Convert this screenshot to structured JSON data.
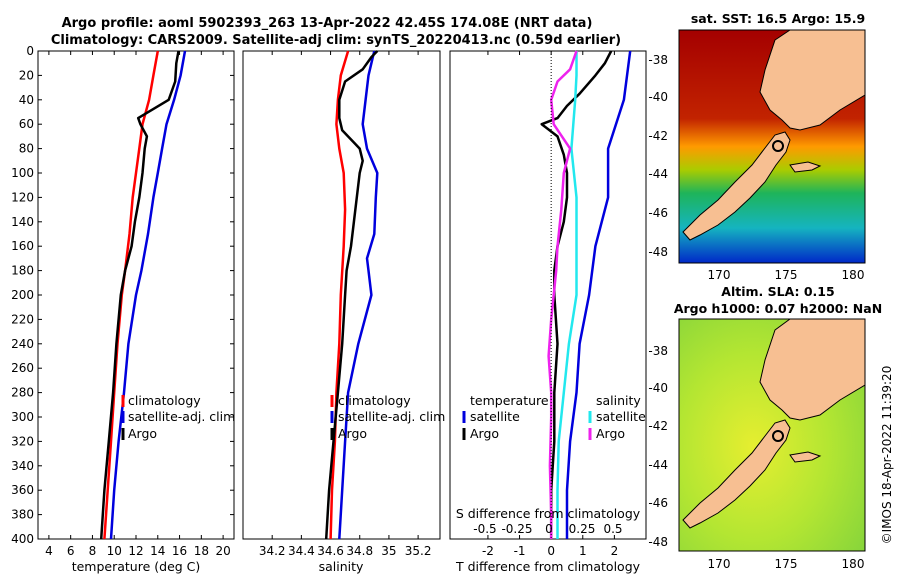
{
  "figure": {
    "title_line1": "Argo profile: aoml 5902393_263 13-Apr-2022 42.45S 174.08E (NRT data)",
    "title_line2": "Climatology: CARS2009. Satellite-adj clim: synTS_20220413.nc (0.59d earlier)",
    "credit": "©IMOS 18-Apr-2022 11:39:20"
  },
  "colors": {
    "climatology": "#ff0000",
    "satellite": "#0000dd",
    "argo": "#000000",
    "satellite_sal": "#22e8ee",
    "argo_sal": "#ee22ee"
  },
  "chart_data": [
    {
      "type": "line",
      "name": "temperature-profile",
      "xlabel": "temperature (deg C)",
      "xlim": [
        3,
        21
      ],
      "ylim": [
        0,
        400
      ],
      "xticks": [
        4,
        6,
        8,
        10,
        12,
        14,
        16,
        18,
        20
      ],
      "yticks": [
        0,
        20,
        40,
        60,
        80,
        100,
        120,
        140,
        160,
        180,
        200,
        220,
        240,
        260,
        280,
        300,
        320,
        340,
        360,
        380,
        400
      ],
      "legend": [
        "climatology",
        "satellite-adj. clim",
        "Argo"
      ],
      "series": [
        {
          "name": "climatology",
          "depth": [
            0,
            20,
            40,
            60,
            80,
            100,
            120,
            150,
            180,
            200,
            240,
            280,
            320,
            360,
            400
          ],
          "values": [
            14.0,
            13.6,
            13.2,
            12.6,
            12.3,
            12.0,
            11.7,
            11.4,
            11.0,
            10.7,
            10.3,
            10.0,
            9.7,
            9.4,
            9.1
          ]
        },
        {
          "name": "satellite-adj. clim",
          "depth": [
            0,
            20,
            40,
            60,
            80,
            100,
            120,
            150,
            180,
            200,
            240,
            280,
            320,
            360,
            400
          ],
          "values": [
            16.5,
            16.1,
            15.5,
            14.8,
            14.4,
            14.0,
            13.6,
            13.1,
            12.5,
            12.0,
            11.3,
            10.9,
            10.4,
            10.0,
            9.7
          ]
        },
        {
          "name": "Argo",
          "depth": [
            0,
            10,
            25,
            40,
            55,
            60,
            70,
            80,
            100,
            120,
            140,
            160,
            180,
            200,
            240,
            280,
            320,
            360,
            400
          ],
          "values": [
            15.9,
            15.7,
            15.6,
            15.0,
            12.2,
            12.4,
            13.0,
            12.8,
            12.6,
            12.3,
            11.9,
            11.6,
            11.0,
            10.6,
            10.2,
            9.9,
            9.5,
            9.1,
            8.8
          ]
        }
      ]
    },
    {
      "type": "line",
      "name": "salinity-profile",
      "xlabel": "salinity",
      "xlim": [
        34.0,
        35.35
      ],
      "ylim": [
        0,
        400
      ],
      "xticks": [
        34.2,
        34.4,
        34.6,
        34.8,
        35,
        35.2
      ],
      "xtick_labels": [
        "34.2",
        "34.4",
        "34.6",
        "34.8",
        "35",
        "35.2"
      ],
      "legend": [
        "climatology",
        "satellite-adj. clim",
        "Argo"
      ],
      "series": [
        {
          "name": "climatology",
          "depth": [
            0,
            20,
            40,
            60,
            80,
            100,
            130,
            160,
            200,
            240,
            280,
            320,
            360,
            400
          ],
          "values": [
            34.72,
            34.67,
            34.65,
            34.64,
            34.66,
            34.69,
            34.7,
            34.69,
            34.67,
            34.66,
            34.64,
            34.63,
            34.61,
            34.6
          ]
        },
        {
          "name": "satellite-adj. clim",
          "depth": [
            0,
            10,
            20,
            40,
            60,
            80,
            100,
            120,
            150,
            170,
            180,
            200,
            240,
            280,
            320,
            360,
            400
          ],
          "values": [
            34.9,
            34.88,
            34.86,
            34.84,
            34.82,
            34.85,
            34.92,
            34.91,
            34.9,
            34.85,
            34.86,
            34.88,
            34.79,
            34.72,
            34.7,
            34.68,
            34.66
          ]
        },
        {
          "name": "Argo",
          "depth": [
            0,
            5,
            15,
            25,
            40,
            55,
            65,
            75,
            80,
            90,
            100,
            120,
            140,
            160,
            180,
            200,
            240,
            280,
            320,
            360,
            400
          ],
          "values": [
            34.92,
            34.88,
            34.82,
            34.7,
            34.66,
            34.66,
            34.68,
            34.76,
            34.8,
            34.82,
            34.8,
            34.78,
            34.76,
            34.74,
            34.71,
            34.7,
            34.68,
            34.65,
            34.62,
            34.59,
            34.57
          ]
        }
      ]
    },
    {
      "type": "line",
      "name": "difference-profile",
      "xlabel": "T difference from climatology",
      "xlabel_top": "S difference from climatology",
      "xlim": [
        -3.2,
        3.0
      ],
      "ylim": [
        0,
        400
      ],
      "xticks": [
        -2,
        -1,
        0,
        1,
        2
      ],
      "xtick_labels": [
        "-2",
        "-1",
        "0",
        "1",
        "2"
      ],
      "xticks_top": [
        "-0.5",
        "-0.25",
        "0",
        "0.25",
        "0.5"
      ],
      "legend": {
        "temperature": [
          "satellite",
          "Argo"
        ],
        "salinity": [
          "satellite",
          "Argo"
        ]
      },
      "legend_headers": {
        "temperature": "temperature",
        "salinity": "salinity"
      },
      "series": [
        {
          "name": "T satellite",
          "depth": [
            0,
            40,
            80,
            120,
            160,
            200,
            240,
            280,
            320,
            360,
            400
          ],
          "values": [
            2.5,
            2.3,
            1.8,
            1.8,
            1.4,
            1.2,
            0.9,
            0.8,
            0.6,
            0.5,
            0.5
          ]
        },
        {
          "name": "T Argo",
          "depth": [
            0,
            10,
            20,
            35,
            45,
            55,
            60,
            70,
            85,
            100,
            120,
            140,
            160,
            180,
            200,
            240,
            280,
            320,
            360,
            400
          ],
          "values": [
            1.9,
            1.7,
            1.4,
            0.9,
            0.5,
            0.2,
            -0.3,
            0.2,
            0.4,
            0.5,
            0.5,
            0.4,
            0.2,
            0.1,
            0.1,
            0.2,
            0.1,
            0.1,
            0.0,
            0.0
          ]
        },
        {
          "name": "S satellite",
          "depth": [
            0,
            20,
            40,
            80,
            120,
            160,
            200,
            240,
            280,
            320,
            360,
            400
          ],
          "values": [
            0.2,
            0.2,
            0.19,
            0.16,
            0.2,
            0.2,
            0.2,
            0.14,
            0.1,
            0.06,
            0.05,
            0.05
          ]
        },
        {
          "name": "S Argo",
          "depth": [
            0,
            15,
            25,
            40,
            60,
            80,
            100,
            130,
            160,
            180,
            200,
            220,
            250,
            280,
            300,
            340,
            380,
            400
          ],
          "values": [
            0.2,
            0.15,
            0.05,
            0.0,
            0.02,
            0.15,
            0.1,
            0.08,
            0.05,
            0.04,
            0.02,
            0.0,
            -0.02,
            0.0,
            0.0,
            -0.01,
            0.0,
            0.0
          ]
        }
      ]
    },
    {
      "type": "heatmap",
      "name": "sst-map",
      "title": "sat. SST: 16.5 Argo: 15.9",
      "xticks": [
        "170",
        "175",
        "180"
      ],
      "yticks": [
        "-38",
        "-40",
        "-42",
        "-44",
        "-46",
        "-48"
      ],
      "xlim": [
        167,
        181
      ],
      "ylim": [
        -48.5,
        -36.5
      ]
    },
    {
      "type": "heatmap",
      "name": "sla-map",
      "title_line1": "Altim. SLA: 0.15",
      "title_line2": "Argo h1000: 0.07 h2000: NaN",
      "xticks": [
        "170",
        "175",
        "180"
      ],
      "yticks": [
        "-38",
        "-40",
        "-42",
        "-44",
        "-46",
        "-48"
      ],
      "xlim": [
        167,
        181
      ],
      "ylim": [
        -48.5,
        -36.5
      ]
    }
  ]
}
